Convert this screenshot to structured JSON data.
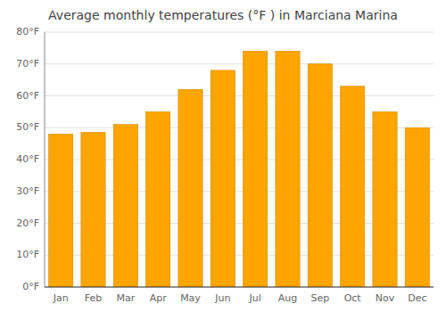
{
  "chart_data": {
    "type": "bar",
    "title": "Average monthly temperatures (°F ) in Marciana Marina",
    "categories": [
      "Jan",
      "Feb",
      "Mar",
      "Apr",
      "May",
      "Jun",
      "Jul",
      "Aug",
      "Sep",
      "Oct",
      "Nov",
      "Dec"
    ],
    "values": [
      48,
      48.5,
      51,
      55,
      62,
      68,
      74,
      74,
      70,
      63,
      55,
      50
    ],
    "color": "#FFA500",
    "ylim": [
      0,
      80
    ],
    "yticks": [
      {
        "value": 0,
        "label": "0°F"
      },
      {
        "value": 10,
        "label": "10°F"
      },
      {
        "value": 20,
        "label": "20°F"
      },
      {
        "value": 30,
        "label": "30°F"
      },
      {
        "value": 40,
        "label": "40°F"
      },
      {
        "value": 50,
        "label": "50°F"
      },
      {
        "value": 60,
        "label": "60°F"
      },
      {
        "value": 70,
        "label": "70°F"
      },
      {
        "value": 80,
        "label": "80°F"
      }
    ],
    "grid": true
  }
}
